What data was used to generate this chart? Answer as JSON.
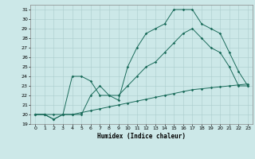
{
  "xlabel": "Humidex (Indice chaleur)",
  "bg_color": "#cce8e8",
  "grid_color": "#aacccc",
  "line_color": "#1a6b5a",
  "xlim": [
    -0.5,
    23.5
  ],
  "ylim": [
    19,
    31.5
  ],
  "yticks": [
    19,
    20,
    21,
    22,
    23,
    24,
    25,
    26,
    27,
    28,
    29,
    30,
    31
  ],
  "xticks": [
    0,
    1,
    2,
    3,
    4,
    5,
    6,
    7,
    8,
    9,
    10,
    11,
    12,
    13,
    14,
    15,
    16,
    17,
    18,
    19,
    20,
    21,
    22,
    23
  ],
  "line1_x": [
    0,
    1,
    2,
    3,
    4,
    5,
    6,
    7,
    8,
    9,
    10,
    11,
    12,
    13,
    14,
    15,
    16,
    17,
    18,
    19,
    20,
    21,
    22,
    23
  ],
  "line1_y": [
    20,
    20,
    19.5,
    20,
    24,
    24,
    23.5,
    22,
    22,
    21.5,
    25,
    27,
    28.5,
    29,
    29.5,
    31,
    31,
    31,
    29.5,
    29,
    28.5,
    26.5,
    24.5,
    23
  ],
  "line2_x": [
    0,
    1,
    2,
    3,
    4,
    5,
    6,
    7,
    8,
    9,
    10,
    11,
    12,
    13,
    14,
    15,
    16,
    17,
    18,
    19,
    20,
    21,
    22,
    23
  ],
  "line2_y": [
    20,
    20,
    19.5,
    20,
    20,
    20,
    22,
    23,
    22,
    22,
    23,
    24,
    25,
    25.5,
    26.5,
    27.5,
    28.5,
    29,
    28,
    27,
    26.5,
    25,
    23,
    23
  ],
  "line3_x": [
    0,
    1,
    2,
    3,
    4,
    5,
    6,
    7,
    8,
    9,
    10,
    11,
    12,
    13,
    14,
    15,
    16,
    17,
    18,
    19,
    20,
    21,
    22,
    23
  ],
  "line3_y": [
    20,
    20,
    20,
    20,
    20,
    20.2,
    20.4,
    20.6,
    20.8,
    21,
    21.2,
    21.4,
    21.6,
    21.8,
    22,
    22.2,
    22.4,
    22.6,
    22.7,
    22.8,
    22.9,
    23,
    23.1,
    23.2
  ],
  "tick_fontsize": 4.5,
  "xlabel_fontsize": 5.5,
  "marker_size": 1.8,
  "linewidth": 0.7
}
